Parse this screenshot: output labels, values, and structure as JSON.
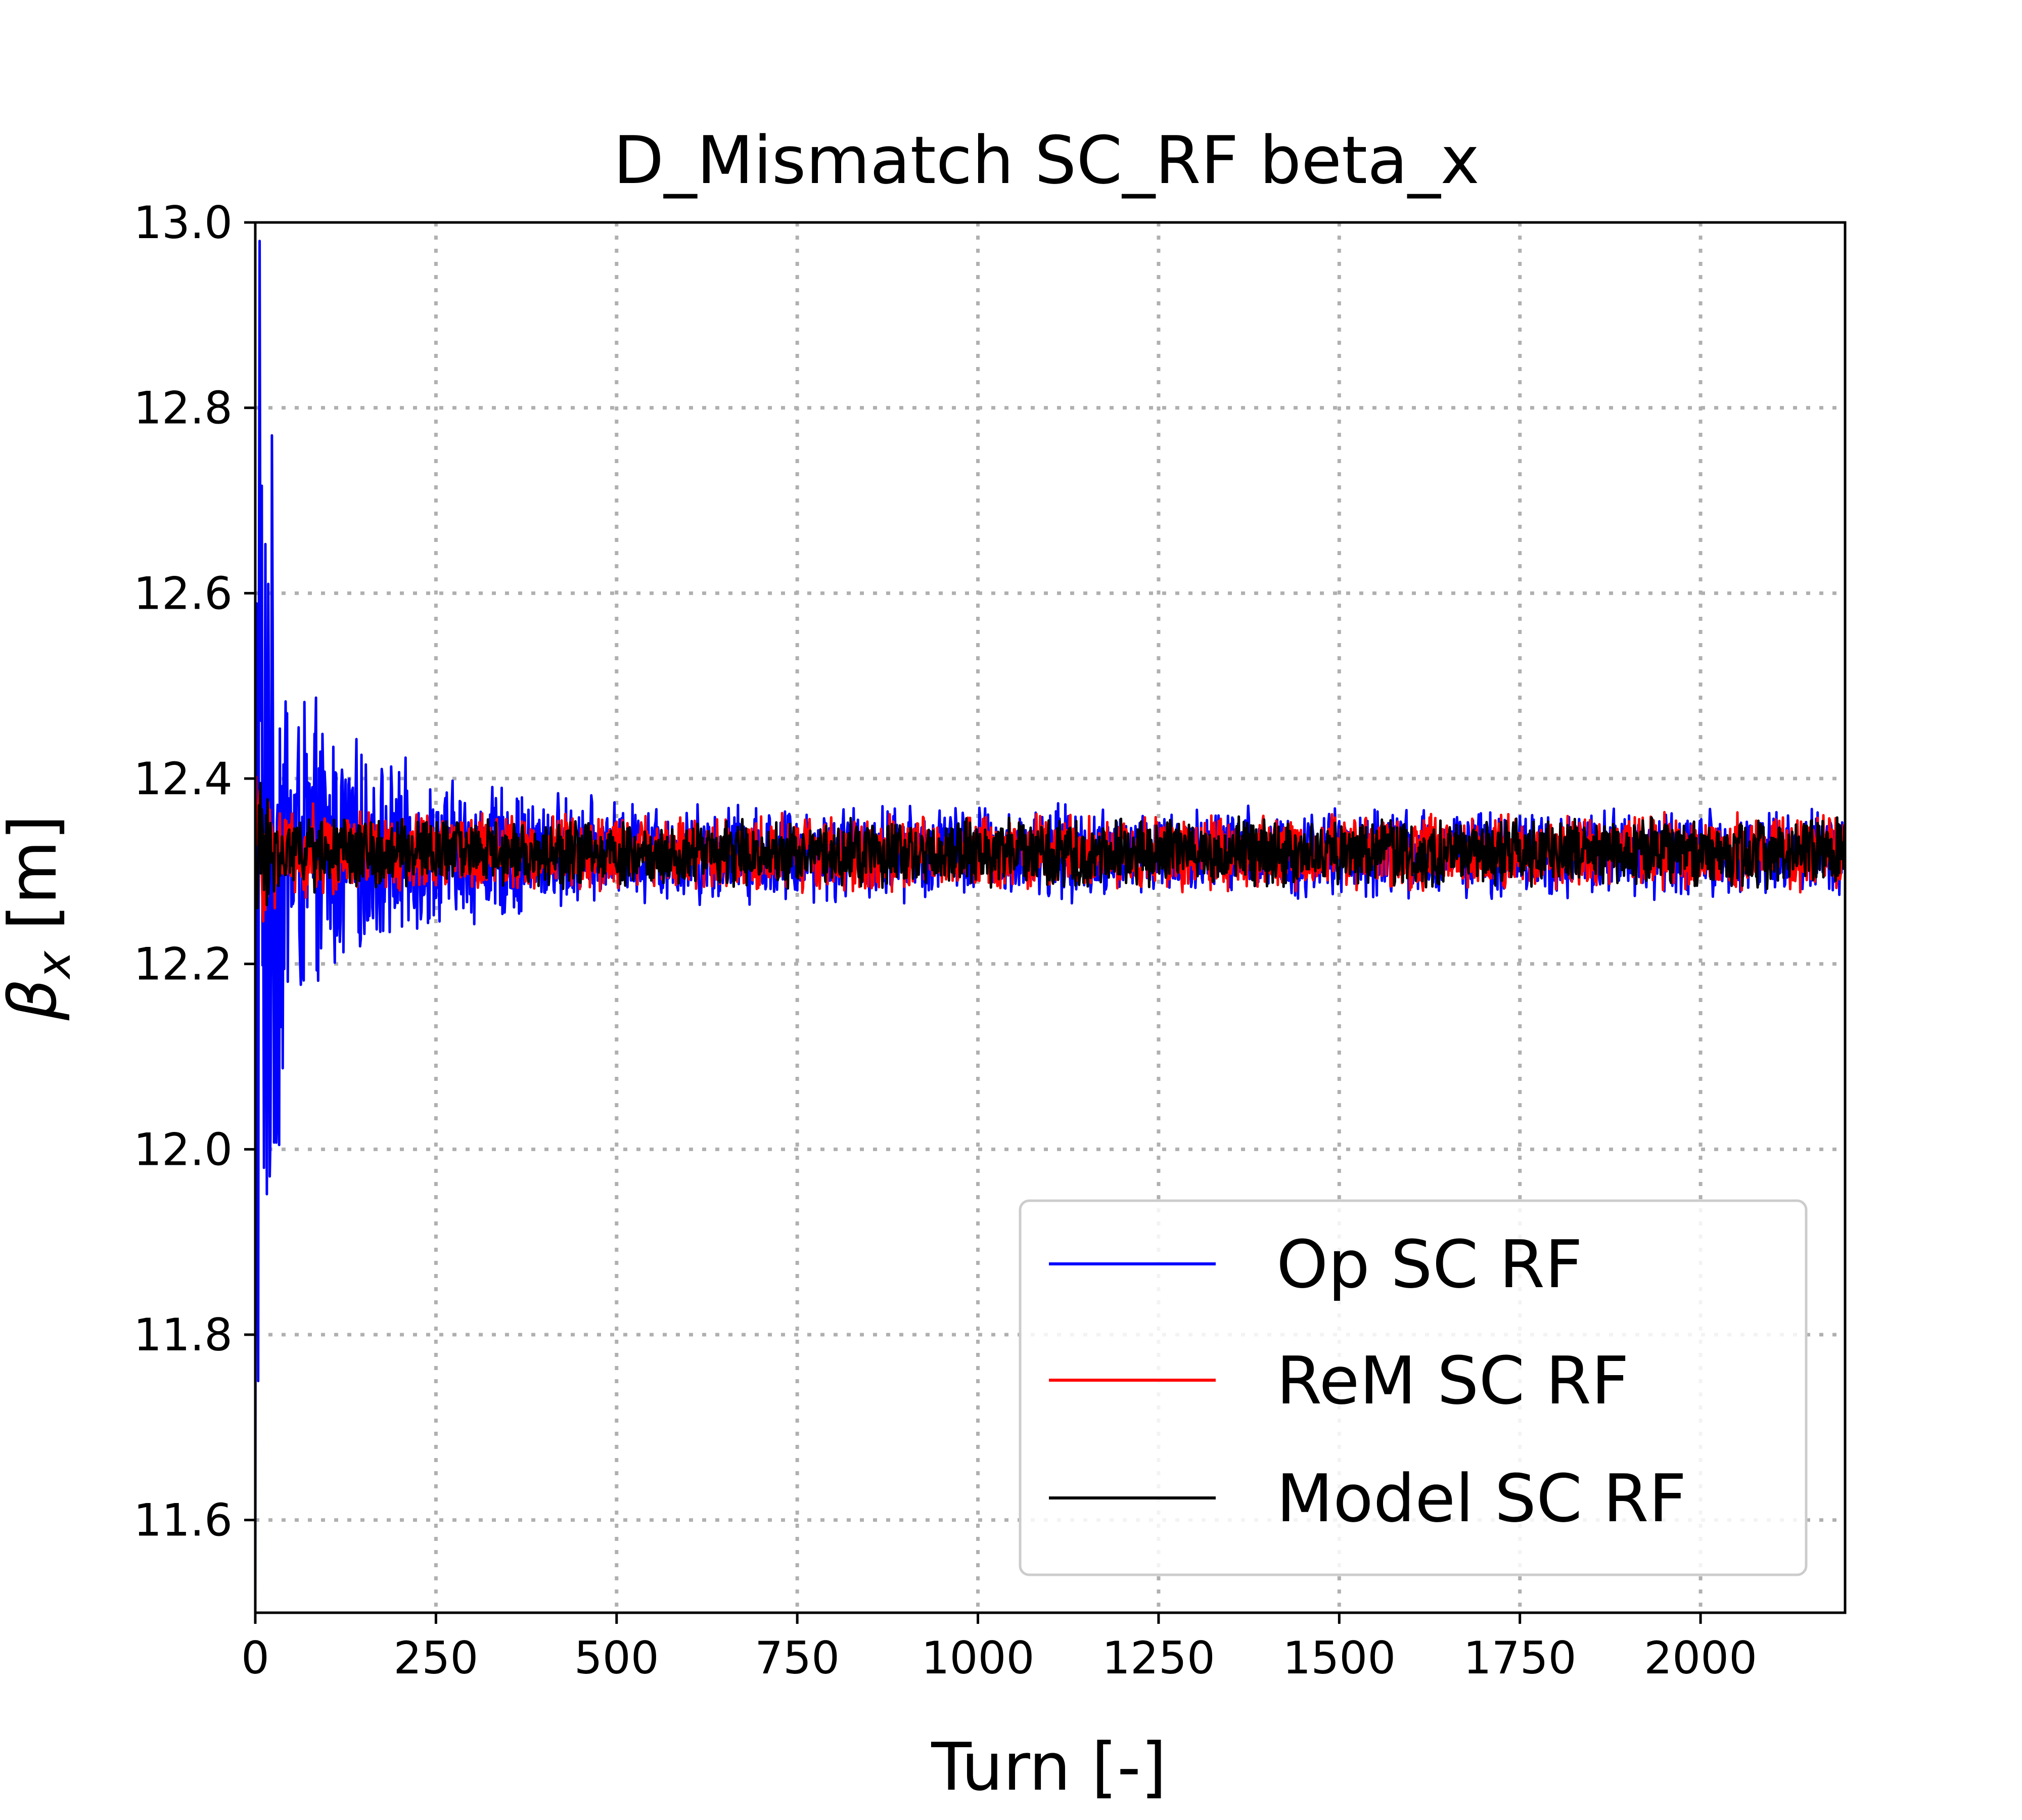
{
  "chart_data": {
    "type": "line",
    "title": "D_Mismatch SC_RF beta_x",
    "xlabel": "Turn [-]",
    "ylabel_symbol": "β",
    "ylabel_subscript": "x",
    "ylabel_unit": "[m]",
    "xlim": [
      0,
      2200
    ],
    "ylim": [
      11.5,
      13.0
    ],
    "x_ticks": [
      0,
      250,
      500,
      750,
      1000,
      1250,
      1500,
      1750,
      2000
    ],
    "x_tick_labels": [
      "0",
      "250",
      "500",
      "750",
      "1000",
      "1250",
      "1500",
      "1750",
      "2000"
    ],
    "y_ticks": [
      11.6,
      11.8,
      12.0,
      12.2,
      12.4,
      12.6,
      12.8,
      13.0
    ],
    "y_tick_labels": [
      "11.6",
      "11.8",
      "12.0",
      "12.2",
      "12.4",
      "12.6",
      "12.8",
      "13.0"
    ],
    "grid": true,
    "legend_position": "lower-right",
    "series": [
      {
        "name": "Op SC RF",
        "color": "#0000ff",
        "x_range": [
          0,
          2200
        ],
        "start_value": 11.5,
        "mean": 12.32,
        "early_peak": 12.98,
        "early_trough": 11.75,
        "amplitude_envelope": [
          [
            0,
            0.66
          ],
          [
            10,
            0.6
          ],
          [
            50,
            0.2
          ],
          [
            150,
            0.12
          ],
          [
            250,
            0.09
          ],
          [
            500,
            0.06
          ],
          [
            2200,
            0.05
          ]
        ]
      },
      {
        "name": "ReM SC RF",
        "color": "#ff0000",
        "x_range": [
          0,
          2200
        ],
        "mean": 12.32,
        "amplitude_envelope": [
          [
            0,
            0.12
          ],
          [
            30,
            0.06
          ],
          [
            250,
            0.045
          ],
          [
            2200,
            0.045
          ]
        ]
      },
      {
        "name": "Model SC RF",
        "color": "#000000",
        "x_range": [
          0,
          2200
        ],
        "mean": 12.32,
        "amplitude_envelope": [
          [
            0,
            0.1
          ],
          [
            30,
            0.045
          ],
          [
            250,
            0.04
          ],
          [
            2200,
            0.04
          ]
        ]
      }
    ]
  }
}
